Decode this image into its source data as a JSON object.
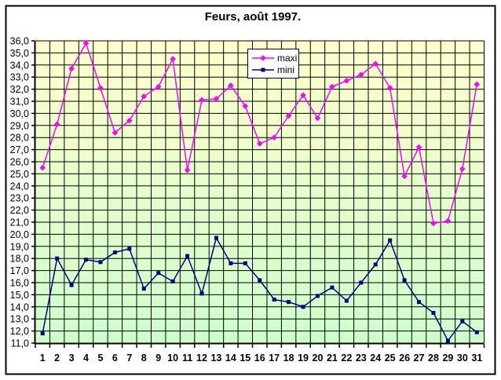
{
  "chart_data": {
    "type": "line",
    "title": "Feurs, août 1997.",
    "xlabel": "",
    "ylabel": "",
    "categories": [
      1,
      2,
      3,
      4,
      5,
      6,
      7,
      8,
      9,
      10,
      11,
      12,
      13,
      14,
      15,
      16,
      17,
      18,
      19,
      20,
      21,
      22,
      23,
      24,
      25,
      26,
      27,
      28,
      29,
      30,
      31
    ],
    "x_tick_labels": [
      "1",
      "2",
      "3",
      "4",
      "5",
      "6",
      "7",
      "8",
      "9",
      "10",
      "11",
      "12",
      "13",
      "14",
      "15",
      "16",
      "17",
      "18",
      "19",
      "20",
      "21",
      "22",
      "23",
      "24",
      "25",
      "26",
      "27",
      "28",
      "29",
      "30",
      "31"
    ],
    "series": [
      {
        "name": "maxi",
        "color": "#FF00FF",
        "marker": "diamond",
        "values": [
          25.5,
          29.1,
          33.7,
          35.8,
          32.1,
          28.4,
          29.4,
          31.4,
          32.2,
          34.5,
          25.3,
          31.1,
          31.2,
          32.3,
          30.6,
          27.5,
          28.0,
          29.8,
          31.5,
          29.6,
          32.2,
          32.7,
          33.2,
          34.1,
          32.1,
          24.8,
          27.2,
          20.9,
          21.1,
          25.4,
          32.4
        ]
      },
      {
        "name": "mini",
        "color": "#000080",
        "marker": "square",
        "values": [
          11.8,
          18.0,
          15.8,
          17.9,
          17.7,
          18.5,
          18.8,
          15.5,
          16.8,
          16.1,
          18.2,
          15.1,
          19.7,
          17.6,
          17.6,
          16.2,
          14.6,
          14.4,
          14.0,
          14.9,
          15.6,
          14.5,
          16.0,
          17.5,
          19.5,
          16.2,
          14.4,
          13.5,
          11.2,
          12.8,
          11.9
        ]
      }
    ],
    "ylim": [
      11,
      36
    ],
    "y_tick_step": 1.0,
    "y_tick_labels": [
      "36,0",
      "35,0",
      "34,0",
      "33,0",
      "32,0",
      "31,0",
      "30,0",
      "29,0",
      "28,0",
      "27,0",
      "26,0",
      "25,0",
      "24,0",
      "23,0",
      "22,0",
      "21,0",
      "20,0",
      "19,0",
      "18,0",
      "17,0",
      "16,0",
      "15,0",
      "14,0",
      "13,0",
      "12,0",
      "11,0"
    ],
    "decimal_separator": ",",
    "grid": true,
    "legend_position": "top-center",
    "colors": {
      "plot_bg_top": "#FFFFCC",
      "plot_bg_bottom": "#CCFFCC",
      "gridline": "#000000",
      "axis": "#000000",
      "text": "#000000",
      "outer_border": "#000000",
      "page_bg": "#FFFFFF",
      "legend_bg": "#FFFFFF"
    }
  }
}
